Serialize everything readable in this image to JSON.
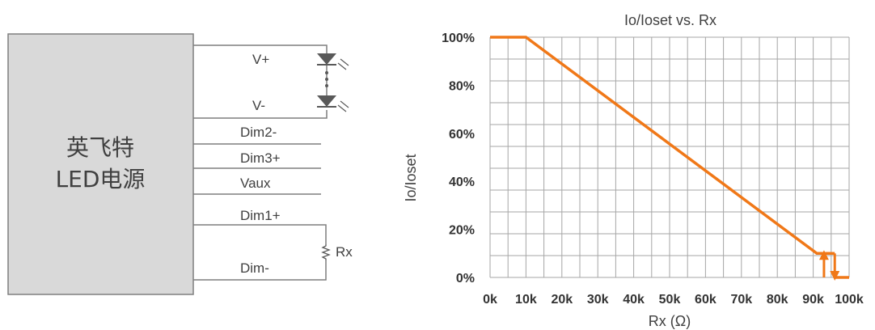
{
  "wiring": {
    "power_supply_line1": "英飞特",
    "power_supply_line2": "LED电源",
    "labels": {
      "v_plus": "V+",
      "v_minus": "V-",
      "dim2_minus": "Dim2-",
      "dim3_plus": "Dim3+",
      "vaux": "Vaux",
      "dim1_plus": "Dim1+",
      "dim_minus": "Dim-",
      "rx": "Rx"
    }
  },
  "colors": {
    "curve": "#f07818",
    "grid": "#a6a6a6",
    "box_fill": "#d9d9d9",
    "wire": "#7f7f7f",
    "text": "#333333"
  },
  "chart_data": {
    "type": "line",
    "title": "Io/Ioset vs. Rx",
    "xlabel": "Rx (Ω)",
    "ylabel": "Io/Ioset",
    "x_ticks": [
      "0k",
      "10k",
      "20k",
      "30k",
      "40k",
      "50k",
      "60k",
      "70k",
      "80k",
      "90k",
      "100k"
    ],
    "y_ticks": [
      "0%",
      "20%",
      "40%",
      "60%",
      "80%",
      "100%"
    ],
    "xlim": [
      0,
      100000
    ],
    "ylim": [
      0,
      100
    ],
    "grid": true,
    "series": [
      {
        "x": [
          0,
          10000,
          91000,
          93000
        ],
        "y": [
          100,
          100,
          10,
          10
        ]
      },
      {
        "x": [
          96000,
          100000
        ],
        "y": [
          0,
          0
        ]
      }
    ],
    "hysteresis_arrows": [
      {
        "x": 93000,
        "from": 0,
        "to": 10,
        "direction": "up"
      },
      {
        "x": 96000,
        "from": 10,
        "to": 0,
        "direction": "down"
      }
    ]
  }
}
